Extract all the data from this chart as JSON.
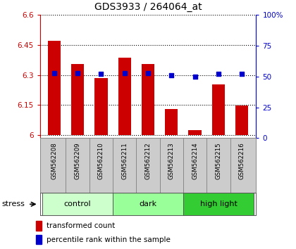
{
  "title": "GDS3933 / 264064_at",
  "samples": [
    "GSM562208",
    "GSM562209",
    "GSM562210",
    "GSM562211",
    "GSM562212",
    "GSM562213",
    "GSM562214",
    "GSM562215",
    "GSM562216"
  ],
  "bar_values": [
    6.47,
    6.355,
    6.285,
    6.385,
    6.355,
    6.13,
    6.025,
    6.255,
    6.148
  ],
  "percentile_values": [
    53,
    53,
    52,
    53,
    53,
    51,
    50,
    52,
    52
  ],
  "bar_bottom": 6.0,
  "ylim_left": [
    5.985,
    6.6
  ],
  "ylim_right": [
    0,
    100
  ],
  "yticks_left": [
    6.0,
    6.15,
    6.3,
    6.45,
    6.6
  ],
  "yticks_right": [
    0,
    25,
    50,
    75,
    100
  ],
  "ytick_labels_left": [
    "6",
    "6.15",
    "6.3",
    "6.45",
    "6.6"
  ],
  "ytick_labels_right": [
    "0",
    "25",
    "50",
    "75",
    "100%"
  ],
  "bar_color": "#cc0000",
  "dot_color": "#0000cc",
  "groups": [
    {
      "label": "control",
      "indices": [
        0,
        1,
        2
      ],
      "color": "#ccffcc"
    },
    {
      "label": "dark",
      "indices": [
        3,
        4,
        5
      ],
      "color": "#99ff99"
    },
    {
      "label": "high light",
      "indices": [
        6,
        7,
        8
      ],
      "color": "#33cc33"
    }
  ],
  "stress_label": "stress",
  "legend_bar_label": "transformed count",
  "legend_dot_label": "percentile rank within the sample",
  "label_area_bg": "#cccccc",
  "left_axis_color": "#cc0000",
  "right_axis_color": "#0000cc"
}
